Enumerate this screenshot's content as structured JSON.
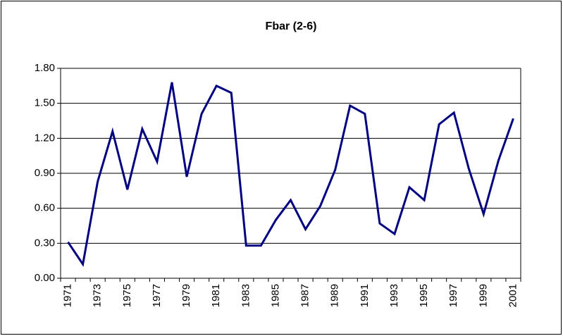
{
  "chart_data": {
    "type": "line",
    "title": "Fbar (2-6)",
    "categories": [
      "1971",
      null,
      "1973",
      null,
      "1975",
      null,
      "1977",
      null,
      "1979",
      null,
      "1981",
      null,
      "1983",
      null,
      "1985",
      null,
      "1987",
      null,
      "1989",
      null,
      "1991",
      null,
      "1993",
      null,
      "1995",
      null,
      "1997",
      null,
      "1999",
      null,
      "2001"
    ],
    "series": [
      {
        "name": "Fbar (2-6)",
        "color": "#000080",
        "values": [
          0.31,
          0.12,
          0.83,
          1.26,
          0.76,
          1.28,
          1.0,
          1.68,
          0.87,
          1.41,
          1.65,
          1.59,
          0.28,
          0.28,
          0.5,
          0.67,
          0.42,
          0.62,
          0.93,
          1.48,
          1.41,
          0.47,
          0.38,
          0.78,
          0.67,
          1.32,
          1.42,
          0.94,
          0.55,
          1.01,
          1.37
        ]
      }
    ],
    "ylim": [
      0,
      1.8
    ],
    "yticks": [
      {
        "value": 0,
        "label": "0.00"
      },
      {
        "value": 0.3,
        "label": "0.30"
      },
      {
        "value": 0.6,
        "label": "0.60"
      },
      {
        "value": 0.9,
        "label": "0.90"
      },
      {
        "value": 1.2,
        "label": "1.20"
      },
      {
        "value": 1.5,
        "label": "1.50"
      },
      {
        "value": 1.8,
        "label": "1.80"
      }
    ],
    "grid": true
  }
}
